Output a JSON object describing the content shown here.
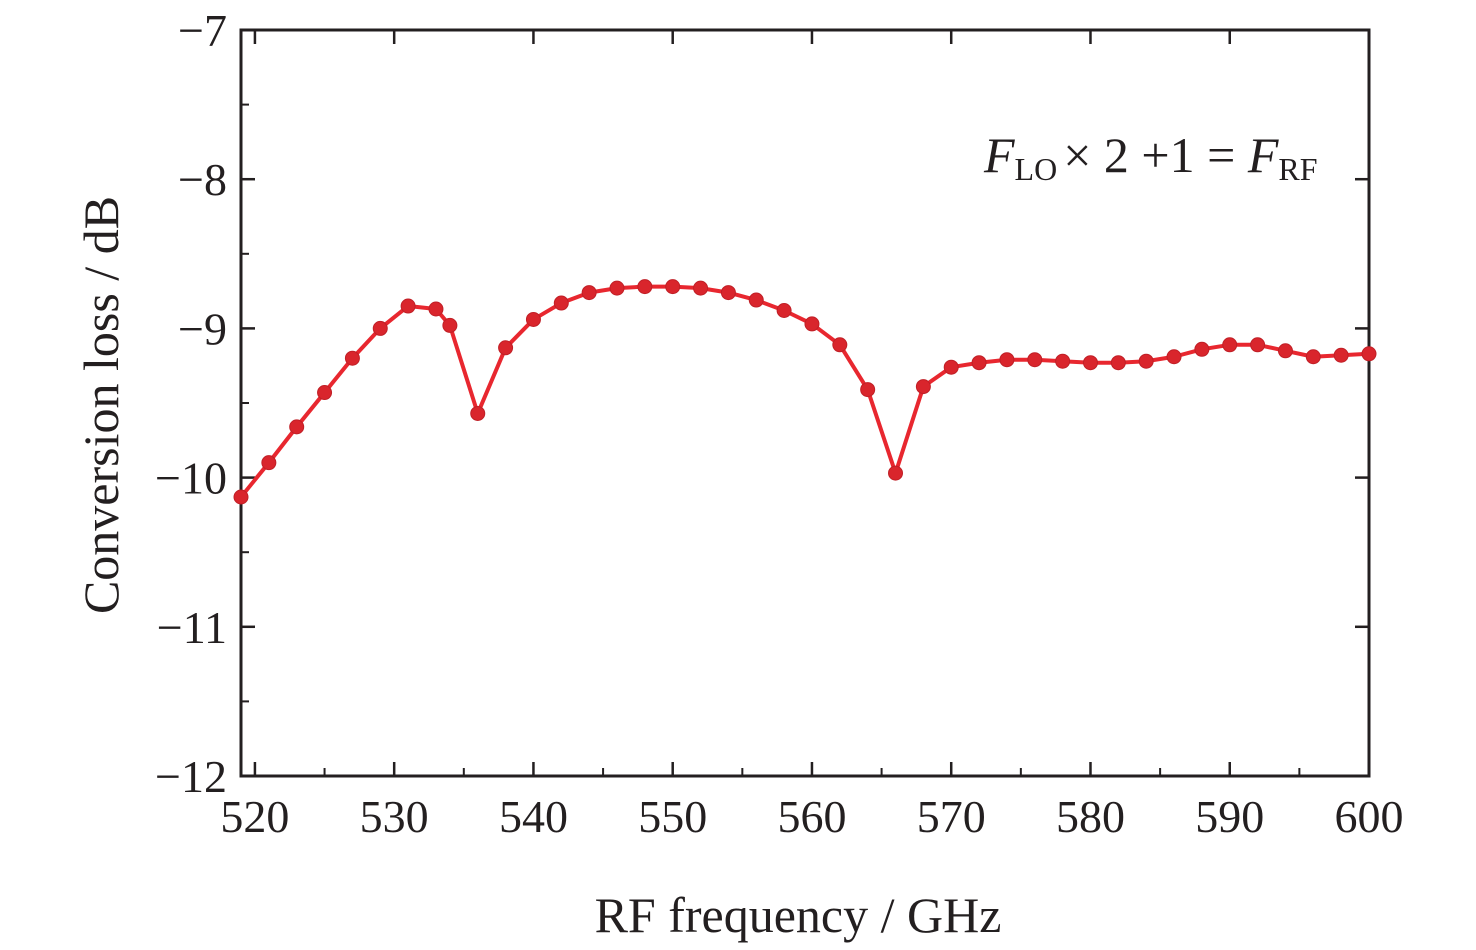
{
  "chart_data": {
    "type": "line",
    "xlabel": "RF frequency / GHz",
    "ylabel": "Conversion loss / dB",
    "xlim": [
      519,
      600
    ],
    "ylim": [
      -12,
      -7
    ],
    "x_ticks": [
      520,
      530,
      540,
      550,
      560,
      570,
      580,
      590,
      600
    ],
    "x_tick_labels": [
      "520",
      "530",
      "540",
      "550",
      "560",
      "570",
      "580",
      "590",
      "600"
    ],
    "y_ticks": [
      -7,
      -8,
      -9,
      -10,
      -11,
      -12
    ],
    "y_tick_labels": [
      "−7",
      "−8",
      "−9",
      "−10",
      "−11",
      "−12"
    ],
    "annotation": {
      "main1": "F",
      "sub1": "LO",
      "middle": "× 2 +1 = ",
      "main2": "F",
      "sub2": "RF"
    },
    "grid": false,
    "colors": {
      "line": "#e8272f",
      "marker": "#d9252c",
      "axis": "#231f20"
    },
    "series": [
      {
        "x": [
          519,
          521,
          523,
          525,
          527,
          529,
          531,
          533,
          534,
          536,
          538,
          540,
          542,
          544,
          546,
          548,
          550,
          552,
          554,
          556,
          558,
          560,
          562,
          564,
          566,
          568,
          570,
          572,
          574,
          576,
          578,
          580,
          582,
          584,
          586,
          588,
          590,
          592,
          594,
          596,
          598,
          600
        ],
        "values": [
          -10.13,
          -9.9,
          -9.66,
          -9.43,
          -9.2,
          -9.0,
          -8.85,
          -8.87,
          -8.98,
          -9.57,
          -9.13,
          -8.94,
          -8.83,
          -8.76,
          -8.73,
          -8.72,
          -8.72,
          -8.73,
          -8.76,
          -8.81,
          -8.88,
          -8.97,
          -9.11,
          -9.41,
          -9.97,
          -9.39,
          -9.26,
          -9.23,
          -9.21,
          -9.21,
          -9.22,
          -9.23,
          -9.23,
          -9.22,
          -9.19,
          -9.14,
          -9.11,
          -9.11,
          -9.15,
          -9.19,
          -9.18,
          -9.17
        ]
      }
    ]
  }
}
